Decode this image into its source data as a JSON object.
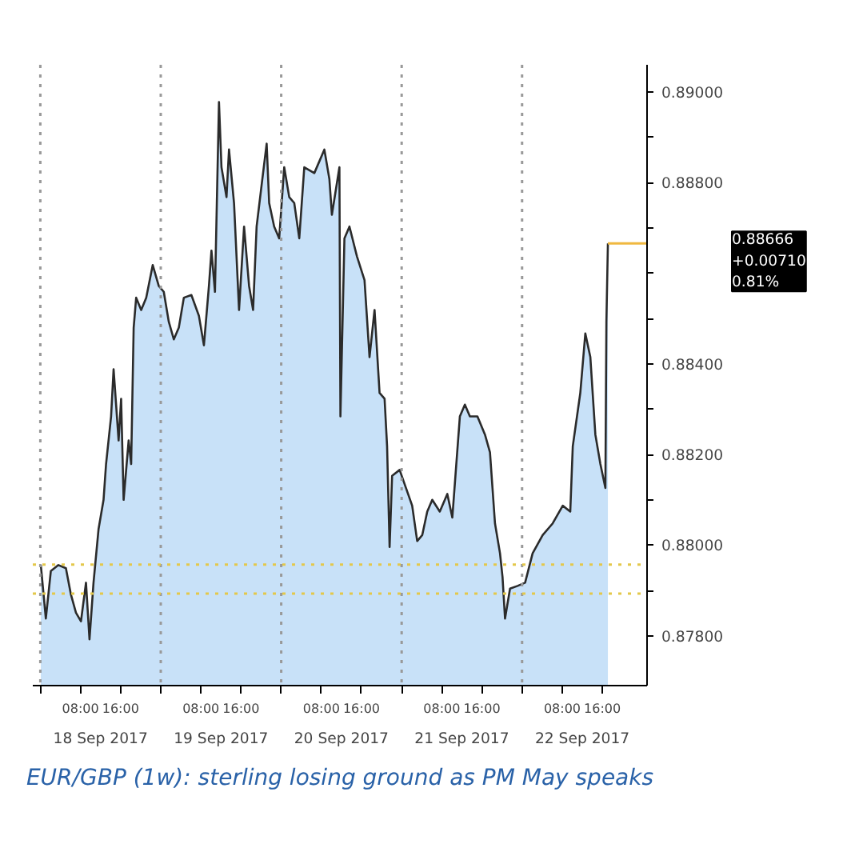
{
  "chart_data": {
    "type": "area",
    "xlim": [
      "2017-09-17T22:30",
      "2017-09-23T00:54"
    ],
    "ylim": [
      0.8769,
      0.8906
    ],
    "xticks": [
      {
        "value": "2017-09-18T00:00",
        "label": null
      },
      {
        "value": "2017-09-18T08:00",
        "label": "08:00"
      },
      {
        "value": "2017-09-18T16:00",
        "label": "16:00"
      },
      {
        "value": "2017-09-19T00:00",
        "label": null
      },
      {
        "value": "2017-09-19T08:00",
        "label": "08:00"
      },
      {
        "value": "2017-09-19T16:00",
        "label": "16:00"
      },
      {
        "value": "2017-09-20T00:00",
        "label": null
      },
      {
        "value": "2017-09-20T08:00",
        "label": "08:00"
      },
      {
        "value": "2017-09-20T16:00",
        "label": "16:00"
      },
      {
        "value": "2017-09-21T00:00",
        "label": null
      },
      {
        "value": "2017-09-21T08:00",
        "label": "08:00"
      },
      {
        "value": "2017-09-21T16:00",
        "label": "16:00"
      },
      {
        "value": "2017-09-22T00:00",
        "label": null
      },
      {
        "value": "2017-09-22T08:00",
        "label": "08:00"
      },
      {
        "value": "2017-09-22T16:00",
        "label": "16:00"
      }
    ],
    "yticks": [
      {
        "value": 0.878,
        "label": "0.87800"
      },
      {
        "value": 0.879,
        "label": null
      },
      {
        "value": 0.88,
        "label": "0.88000"
      },
      {
        "value": 0.881,
        "label": null
      },
      {
        "value": 0.882,
        "label": "0.88200"
      },
      {
        "value": 0.883,
        "label": null
      },
      {
        "value": 0.884,
        "label": "0.88400"
      },
      {
        "value": 0.885,
        "label": null
      },
      {
        "value": 0.886,
        "label": null
      },
      {
        "value": 0.887,
        "label": null
      },
      {
        "value": 0.888,
        "label": "0.88800"
      },
      {
        "value": 0.889,
        "label": null
      },
      {
        "value": 0.89,
        "label": "0.89000"
      }
    ],
    "grid": false,
    "series": [
      {
        "color": "#c8e1f8",
        "x": [
          "2017-09-18T00:06",
          "2017-09-18T01:06",
          "2017-09-18T02:06",
          "2017-09-18T03:36",
          "2017-09-18T05:06",
          "2017-09-18T06:06",
          "2017-09-18T07:06",
          "2017-09-18T08:06",
          "2017-09-18T09:06",
          "2017-09-18T09:48",
          "2017-09-18T10:36",
          "2017-09-18T11:36",
          "2017-09-18T12:36",
          "2017-09-18T13:06",
          "2017-09-18T14:06",
          "2017-09-18T14:36",
          "2017-09-18T15:06",
          "2017-09-18T15:36",
          "2017-09-18T16:06",
          "2017-09-18T16:36",
          "2017-09-18T17:36",
          "2017-09-18T18:06",
          "2017-09-18T18:36",
          "2017-09-18T19:06",
          "2017-09-18T20:06",
          "2017-09-18T21:06",
          "2017-09-18T22:24",
          "2017-09-18T23:36",
          "2017-09-19T00:36",
          "2017-09-19T01:36",
          "2017-09-19T02:36",
          "2017-09-19T03:36",
          "2017-09-19T04:36",
          "2017-09-19T06:06",
          "2017-09-19T07:36",
          "2017-09-19T08:36",
          "2017-09-19T09:36",
          "2017-09-19T10:06",
          "2017-09-19T10:48",
          "2017-09-19T11:36",
          "2017-09-19T12:06",
          "2017-09-19T13:06",
          "2017-09-19T13:36",
          "2017-09-19T14:36",
          "2017-09-19T15:36",
          "2017-09-19T16:36",
          "2017-09-19T17:36",
          "2017-09-19T18:24",
          "2017-09-19T19:06",
          "2017-09-19T20:06",
          "2017-09-19T21:06",
          "2017-09-19T21:36",
          "2017-09-19T22:36",
          "2017-09-19T23:36",
          "2017-09-20T00:36",
          "2017-09-20T01:36",
          "2017-09-20T02:36",
          "2017-09-20T03:36",
          "2017-09-20T04:36",
          "2017-09-20T06:36",
          "2017-09-20T08:36",
          "2017-09-20T09:36",
          "2017-09-20T10:06",
          "2017-09-20T11:36",
          "2017-09-20T11:48",
          "2017-09-20T12:36",
          "2017-09-20T13:36",
          "2017-09-20T15:06",
          "2017-09-20T16:36",
          "2017-09-20T17:36",
          "2017-09-20T18:36",
          "2017-09-20T19:36",
          "2017-09-20T20:36",
          "2017-09-20T21:06",
          "2017-09-20T21:36",
          "2017-09-20T22:06",
          "2017-09-20T23:36",
          "2017-09-21T02:06",
          "2017-09-21T03:06",
          "2017-09-21T04:06",
          "2017-09-21T05:06",
          "2017-09-21T06:06",
          "2017-09-21T07:36",
          "2017-09-21T09:06",
          "2017-09-21T10:06",
          "2017-09-21T11:36",
          "2017-09-21T12:36",
          "2017-09-21T13:36",
          "2017-09-21T15:06",
          "2017-09-21T16:36",
          "2017-09-21T17:36",
          "2017-09-21T18:36",
          "2017-09-21T19:36",
          "2017-09-21T20:06",
          "2017-09-21T20:36",
          "2017-09-21T21:36",
          "2017-09-21T23:06",
          "2017-09-22T00:36",
          "2017-09-22T02:06",
          "2017-09-22T04:06",
          "2017-09-22T06:06",
          "2017-09-22T08:06",
          "2017-09-22T09:36",
          "2017-09-22T10:06",
          "2017-09-22T11:36",
          "2017-09-22T12:36",
          "2017-09-22T13:36",
          "2017-09-22T14:36",
          "2017-09-22T15:36",
          "2017-09-22T16:36",
          "2017-09-22T16:48",
          "2017-09-22T17:06"
        ],
        "values": [
          0.87956,
          0.87838,
          0.87943,
          0.87956,
          0.87949,
          0.87891,
          0.87851,
          0.87832,
          0.87917,
          0.87792,
          0.87917,
          0.88035,
          0.881,
          0.88179,
          0.88284,
          0.88388,
          0.8831,
          0.88231,
          0.88323,
          0.881,
          0.88231,
          0.88179,
          0.8848,
          0.88546,
          0.88519,
          0.88546,
          0.88618,
          0.88572,
          0.88559,
          0.88493,
          0.88454,
          0.8848,
          0.88546,
          0.88552,
          0.88506,
          0.88441,
          0.88572,
          0.8865,
          0.88559,
          0.88978,
          0.88834,
          0.88768,
          0.88873,
          0.88755,
          0.88519,
          0.88703,
          0.88572,
          0.88519,
          0.88703,
          0.88795,
          0.88886,
          0.88755,
          0.88703,
          0.88677,
          0.88834,
          0.88768,
          0.88755,
          0.88677,
          0.88834,
          0.88821,
          0.88873,
          0.88808,
          0.88729,
          0.88834,
          0.88284,
          0.88677,
          0.88703,
          0.88637,
          0.88585,
          0.88415,
          0.88519,
          0.88336,
          0.88323,
          0.88218,
          0.87996,
          0.88153,
          0.88166,
          0.88087,
          0.88009,
          0.88022,
          0.88074,
          0.881,
          0.88074,
          0.88113,
          0.88061,
          0.88284,
          0.8831,
          0.88284,
          0.88284,
          0.88244,
          0.88205,
          0.88048,
          0.87982,
          0.8793,
          0.87838,
          0.87904,
          0.8791,
          0.87917,
          0.87982,
          0.88022,
          0.88048,
          0.88087,
          0.88074,
          0.88218,
          0.88336,
          0.88467,
          0.88415,
          0.88244,
          0.88179,
          0.88126,
          0.88493,
          0.88666
        ]
      },
      {
        "type": "line",
        "color": "#f0b840",
        "x": [
          "2017-09-22T17:06",
          "2017-09-23T00:54"
        ],
        "values": [
          0.88666,
          0.88666
        ]
      }
    ],
    "ref_lines": [
      {
        "axis": "x",
        "value": "2017-09-18T00:00",
        "label": null,
        "color": "#999999",
        "line_style": "dotted"
      },
      {
        "axis": "x",
        "value": "2017-09-19T00:00",
        "label": null,
        "color": "#999999",
        "line_style": "dotted"
      },
      {
        "axis": "x",
        "value": "2017-09-20T00:00",
        "label": null,
        "color": "#999999",
        "line_style": "dotted"
      },
      {
        "axis": "x",
        "value": "2017-09-21T00:00",
        "label": null,
        "color": "#999999",
        "line_style": "dotted"
      },
      {
        "axis": "x",
        "value": "2017-09-22T00:00",
        "label": null,
        "color": "#999999",
        "line_style": "dotted"
      },
      {
        "axis": "y",
        "value": 0.87957,
        "label": null,
        "color": "#e3c84b",
        "line_style": "dotted"
      },
      {
        "axis": "y",
        "value": 0.87893,
        "label": null,
        "color": "#e3c84b",
        "line_style": "dotted"
      }
    ],
    "annotations": [
      "0.88666\n+0.00710\n0.81%",
      "18 Sep 2017",
      "19 Sep 2017",
      "20 Sep 2017",
      "21 Sep 2017",
      "22 Sep 2017",
      "EUR/GBP (1w): sterling losing ground as PM May speaks"
    ]
  }
}
